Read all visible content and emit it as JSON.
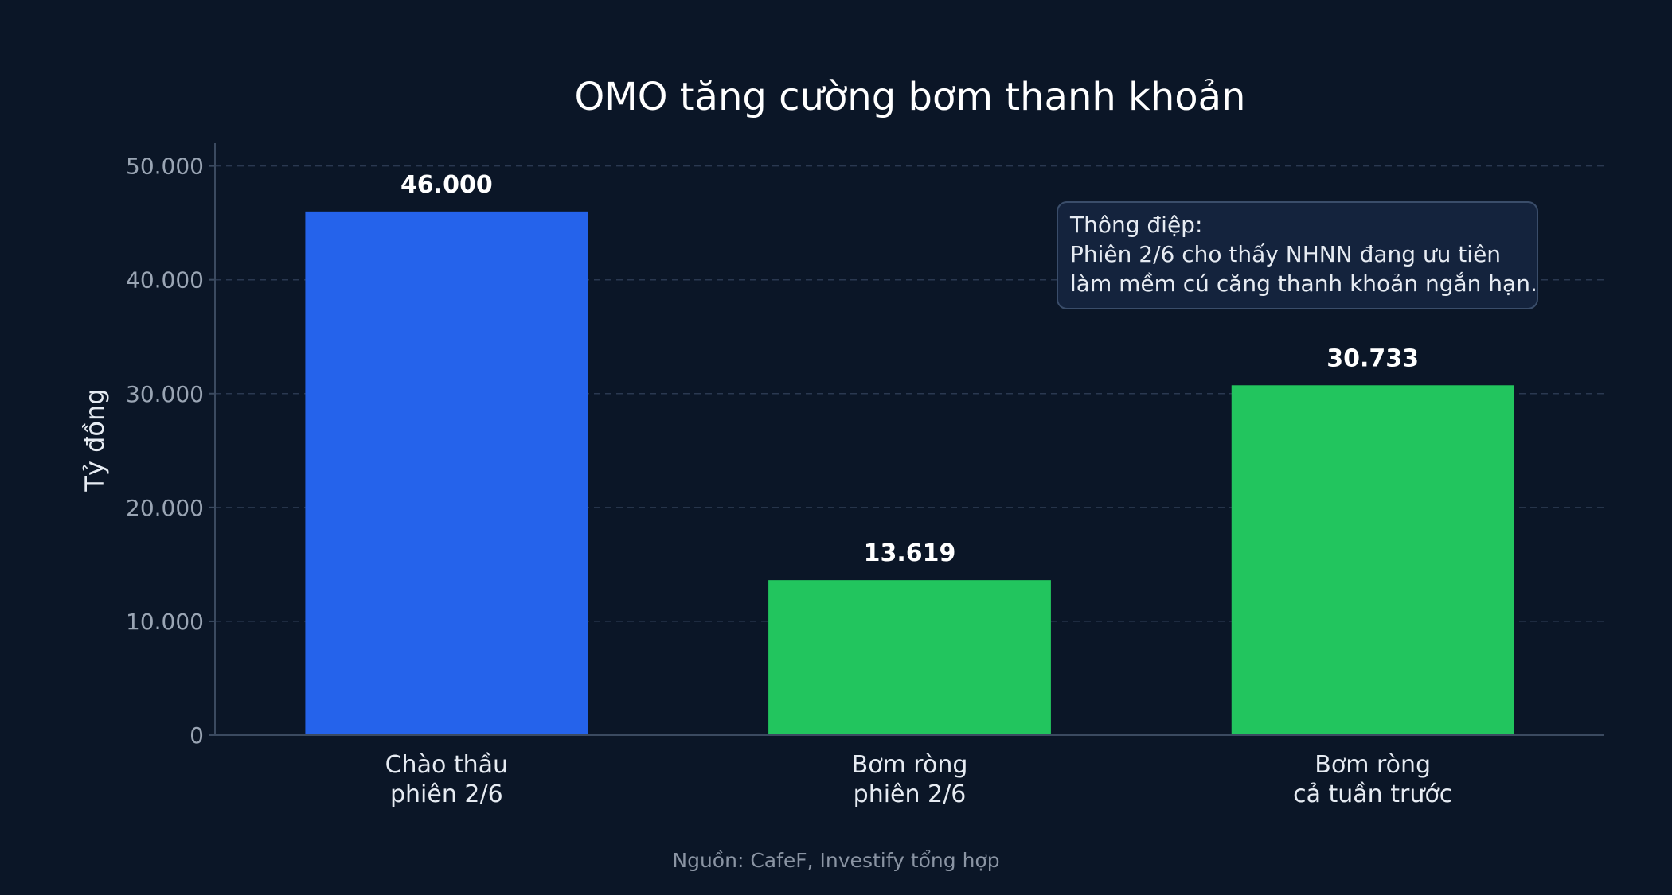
{
  "chart_data": {
    "type": "bar",
    "title": "OMO tăng cường bơm thanh khoản",
    "ylabel": "Tỷ đồng",
    "xlabel": "",
    "ylim": [
      0,
      52000
    ],
    "yticks": [
      0,
      10000,
      20000,
      30000,
      40000,
      50000
    ],
    "ytick_labels": [
      "0",
      "10.000",
      "20.000",
      "30.000",
      "40.000",
      "50.000"
    ],
    "grid": true,
    "categories": [
      [
        "Chào thầu",
        "phiên 2/6"
      ],
      [
        "Bơm ròng",
        "phiên 2/6"
      ],
      [
        "Bơm ròng",
        "cả tuần trước"
      ]
    ],
    "values": [
      46000,
      13619,
      30733
    ],
    "value_labels": [
      "46.000",
      "13.619",
      "30.733"
    ],
    "bar_colors": [
      "#2563eb",
      "#22c55e",
      "#22c55e"
    ],
    "annotation": {
      "heading": "Thông điệp:",
      "lines": [
        "Phiên 2/6 cho thấy NHNN đang ưu tiên",
        "làm mềm cú căng thanh khoản ngắn hạn."
      ]
    }
  },
  "source": "Nguồn: CafeF, Investify tổng hợp",
  "colors": {
    "background": "#0b1627",
    "grid": "#2a3850",
    "axis": "#3b4a60",
    "annotation_fill": "#14233d",
    "annotation_border": "#3a4d6a"
  }
}
